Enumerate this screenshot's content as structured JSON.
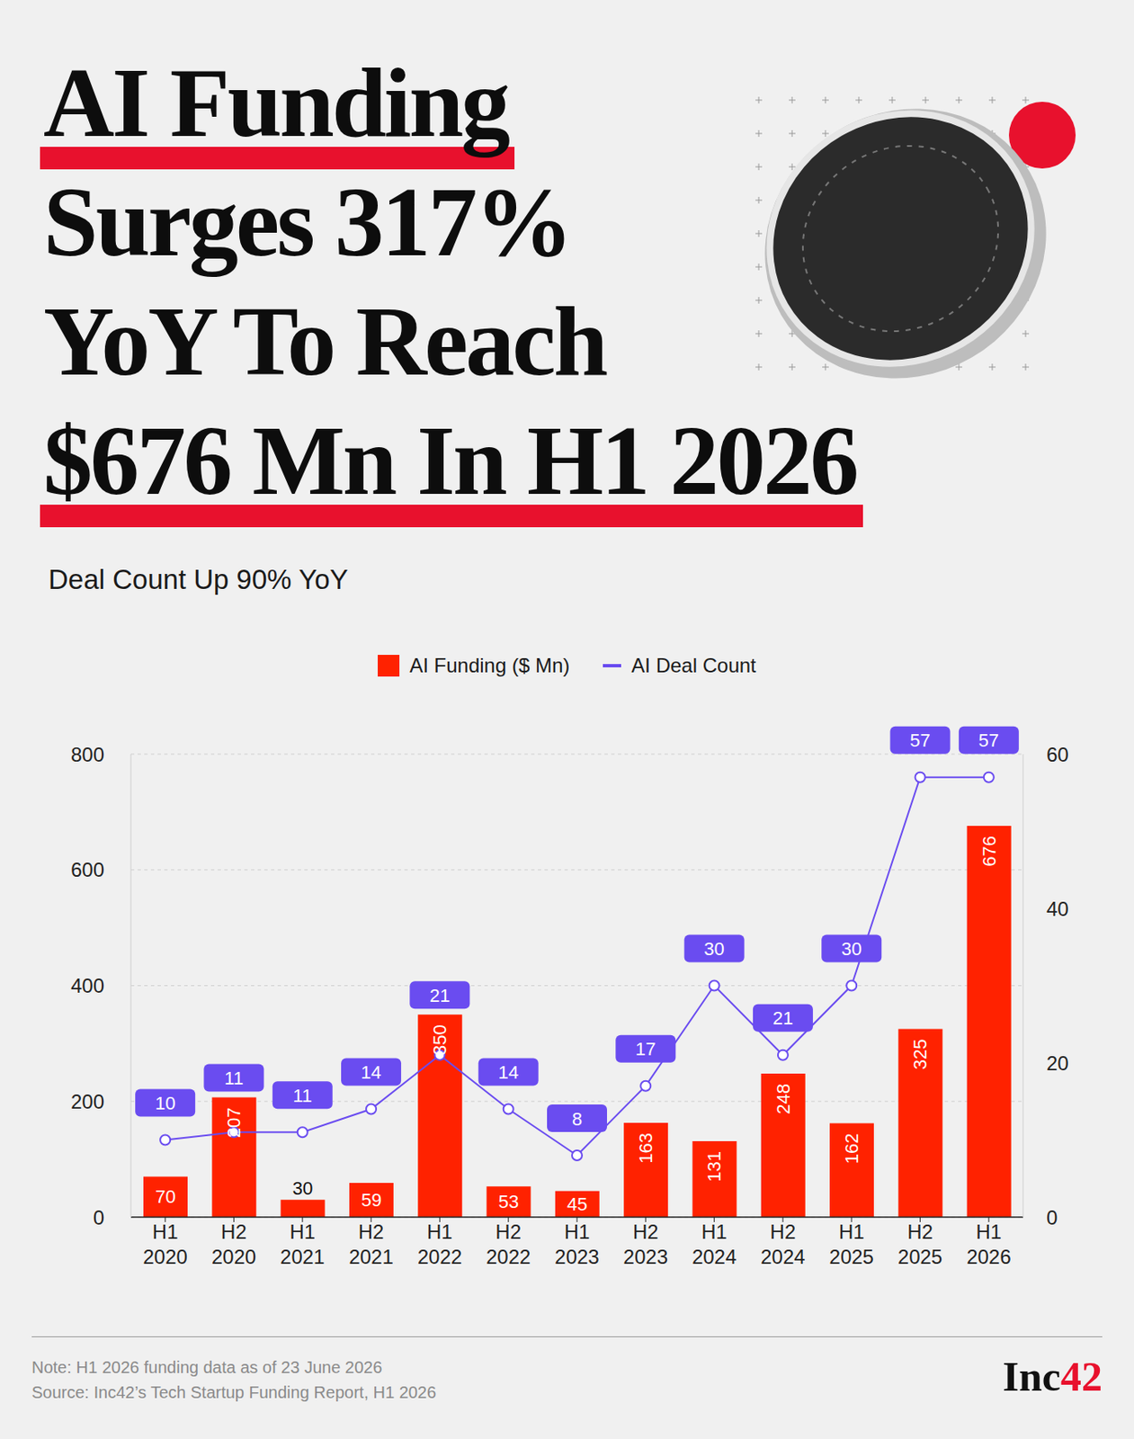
{
  "chart_data": {
    "type": "bar",
    "title": "AI Funding Surges 317% YoY To Reach $676 Mn In H1 2026",
    "subtitle": "Deal Count Up 90% YoY",
    "categories": [
      "H1 2020",
      "H2 2020",
      "H1 2021",
      "H2 2021",
      "H1 2022",
      "H2 2022",
      "H1 2023",
      "H2 2023",
      "H1 2024",
      "H2 2024",
      "H1 2025",
      "H2 2025",
      "H1 2026"
    ],
    "series": [
      {
        "name": "AI Funding ($ Mn)",
        "type": "bar",
        "color": "#ff2200",
        "values": [
          70,
          207,
          30,
          59,
          350,
          53,
          45,
          163,
          131,
          248,
          162,
          325,
          676
        ]
      },
      {
        "name": "AI Deal Count",
        "type": "line",
        "color": "#6a4cf0",
        "axis": "y2",
        "marker": "circle",
        "values": [
          10,
          11,
          11,
          14,
          21,
          14,
          8,
          17,
          30,
          21,
          30,
          57,
          57
        ]
      }
    ],
    "ylim": [
      0,
      800
    ],
    "yticks": [
      0,
      200,
      400,
      600,
      800
    ],
    "y2lim": [
      0,
      60
    ],
    "y2ticks": [
      0,
      20,
      40,
      60
    ],
    "grid": true,
    "legend": "top",
    "data_labels": true,
    "note": "Note: H1 2026 funding data as of 23 June 2026",
    "source": "Source: Inc42’s Tech Startup Funding Report, H1 2026",
    "brand": "Inc42"
  }
}
